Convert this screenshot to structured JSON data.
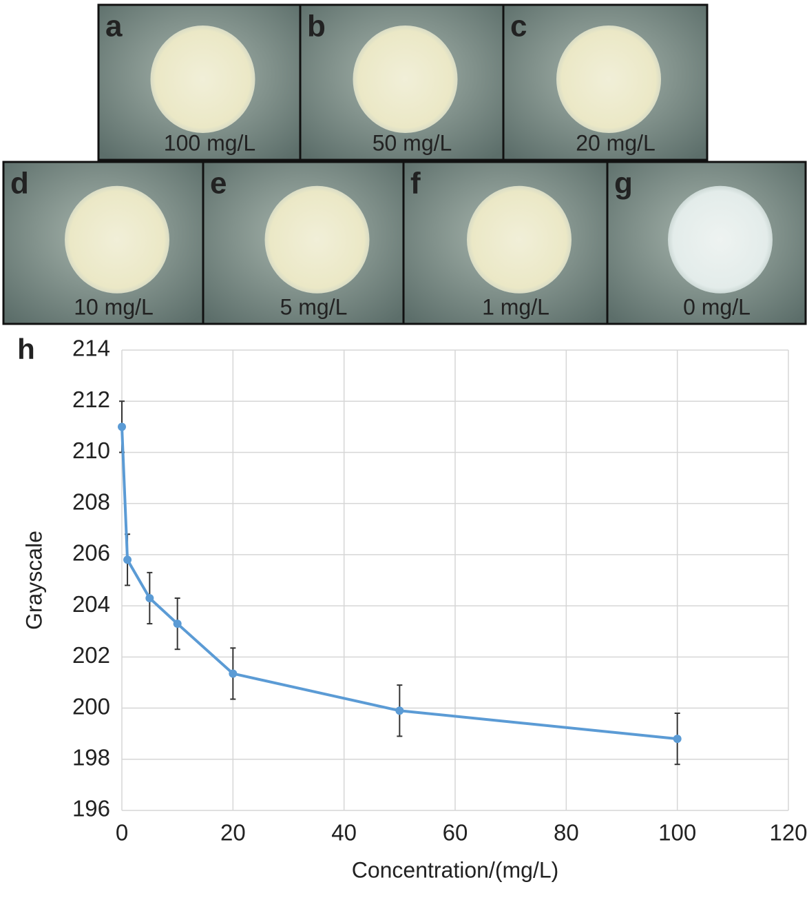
{
  "panels": [
    {
      "label": "a",
      "text": "100 mg/L"
    },
    {
      "label": "b",
      "text": "50 mg/L"
    },
    {
      "label": "c",
      "text": "20 mg/L"
    },
    {
      "label": "d",
      "text": "10 mg/L"
    },
    {
      "label": "e",
      "text": "5 mg/L"
    },
    {
      "label": "f",
      "text": "1 mg/L"
    },
    {
      "label": "g",
      "text": "0 mg/L"
    }
  ],
  "chart_data": {
    "type": "line",
    "panel_label": "h",
    "x_label": "Concentration/(mg/L)",
    "y_label": "Grayscale",
    "x": [
      0,
      1,
      5,
      10,
      20,
      50,
      100
    ],
    "series": [
      {
        "color": "#5b9bd5",
        "values": [
          211,
          205.8,
          204.3,
          203.3,
          201.35,
          199.9,
          198.8
        ],
        "errors": [
          1,
          1,
          1,
          1,
          1,
          1,
          1
        ]
      }
    ],
    "xlim": [
      0,
      120
    ],
    "xticks": [
      0,
      20,
      40,
      60,
      80,
      100,
      120
    ],
    "ylim": [
      196,
      214
    ],
    "yticks": [
      196,
      198,
      200,
      202,
      204,
      206,
      208,
      210,
      212,
      214
    ],
    "grid": true
  }
}
